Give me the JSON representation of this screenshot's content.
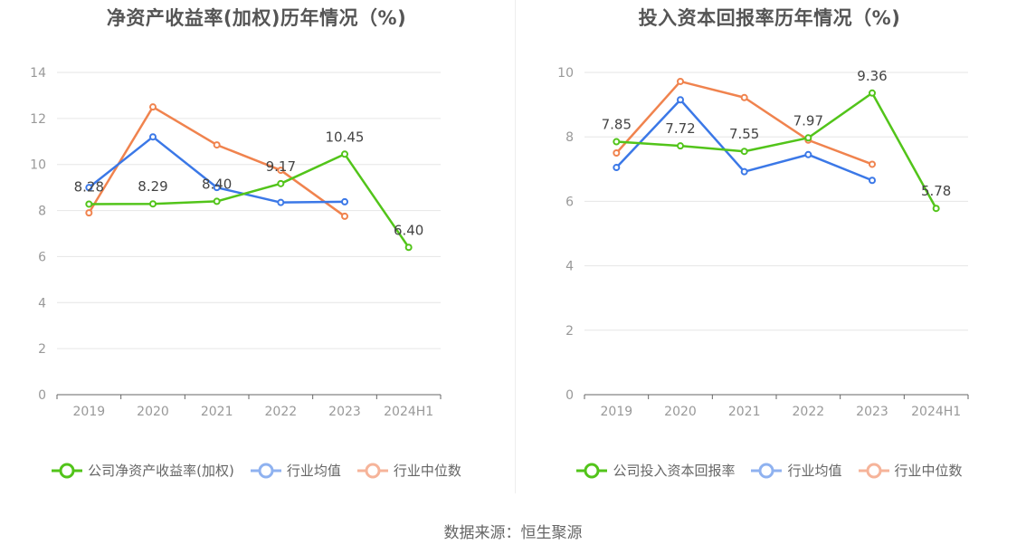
{
  "chart_data": [
    {
      "type": "line",
      "title": "净资产收益率(加权)历年情况（%)",
      "categories": [
        "2019",
        "2020",
        "2021",
        "2022",
        "2023",
        "2024H1"
      ],
      "ylim": [
        0,
        14
      ],
      "yticks": [
        0,
        2,
        4,
        6,
        8,
        10,
        12,
        14
      ],
      "grid": true,
      "legend_position": "bottom",
      "series": [
        {
          "name": "公司净资产收益率(加权)",
          "color": "#52c41a",
          "values": [
            8.28,
            8.29,
            8.4,
            9.17,
            10.45,
            6.4
          ],
          "labels": [
            "8.28",
            "8.29",
            "8.40",
            "9.17",
            "10.45",
            "6.40"
          ]
        },
        {
          "name": "行业均值",
          "color": "#3b78e7",
          "values": [
            9.0,
            11.2,
            9.0,
            8.35,
            8.38,
            null
          ]
        },
        {
          "name": "行业中位数",
          "color": "#f0834e",
          "values": [
            7.9,
            12.5,
            10.85,
            9.75,
            7.75,
            null
          ]
        }
      ]
    },
    {
      "type": "line",
      "title": "投入资本回报率历年情况（%)",
      "categories": [
        "2019",
        "2020",
        "2021",
        "2022",
        "2023",
        "2024H1"
      ],
      "ylim": [
        0,
        10
      ],
      "yticks": [
        0,
        2,
        4,
        6,
        8,
        10
      ],
      "grid": true,
      "legend_position": "bottom",
      "series": [
        {
          "name": "公司投入资本回报率",
          "color": "#52c41a",
          "values": [
            7.85,
            7.72,
            7.55,
            7.97,
            9.36,
            5.78
          ],
          "labels": [
            "7.85",
            "7.72",
            "7.55",
            "7.97",
            "9.36",
            "5.78"
          ]
        },
        {
          "name": "行业均值",
          "color": "#3b78e7",
          "values": [
            7.05,
            9.15,
            6.92,
            7.45,
            6.65,
            null
          ]
        },
        {
          "name": "行业中位数",
          "color": "#f0834e",
          "values": [
            7.5,
            9.72,
            9.22,
            7.9,
            7.15,
            null
          ]
        }
      ]
    }
  ],
  "legend_marker_colors": [
    "#52c41a",
    "#8fb2f0",
    "#f6b49a"
  ],
  "source": "数据来源：恒生聚源"
}
